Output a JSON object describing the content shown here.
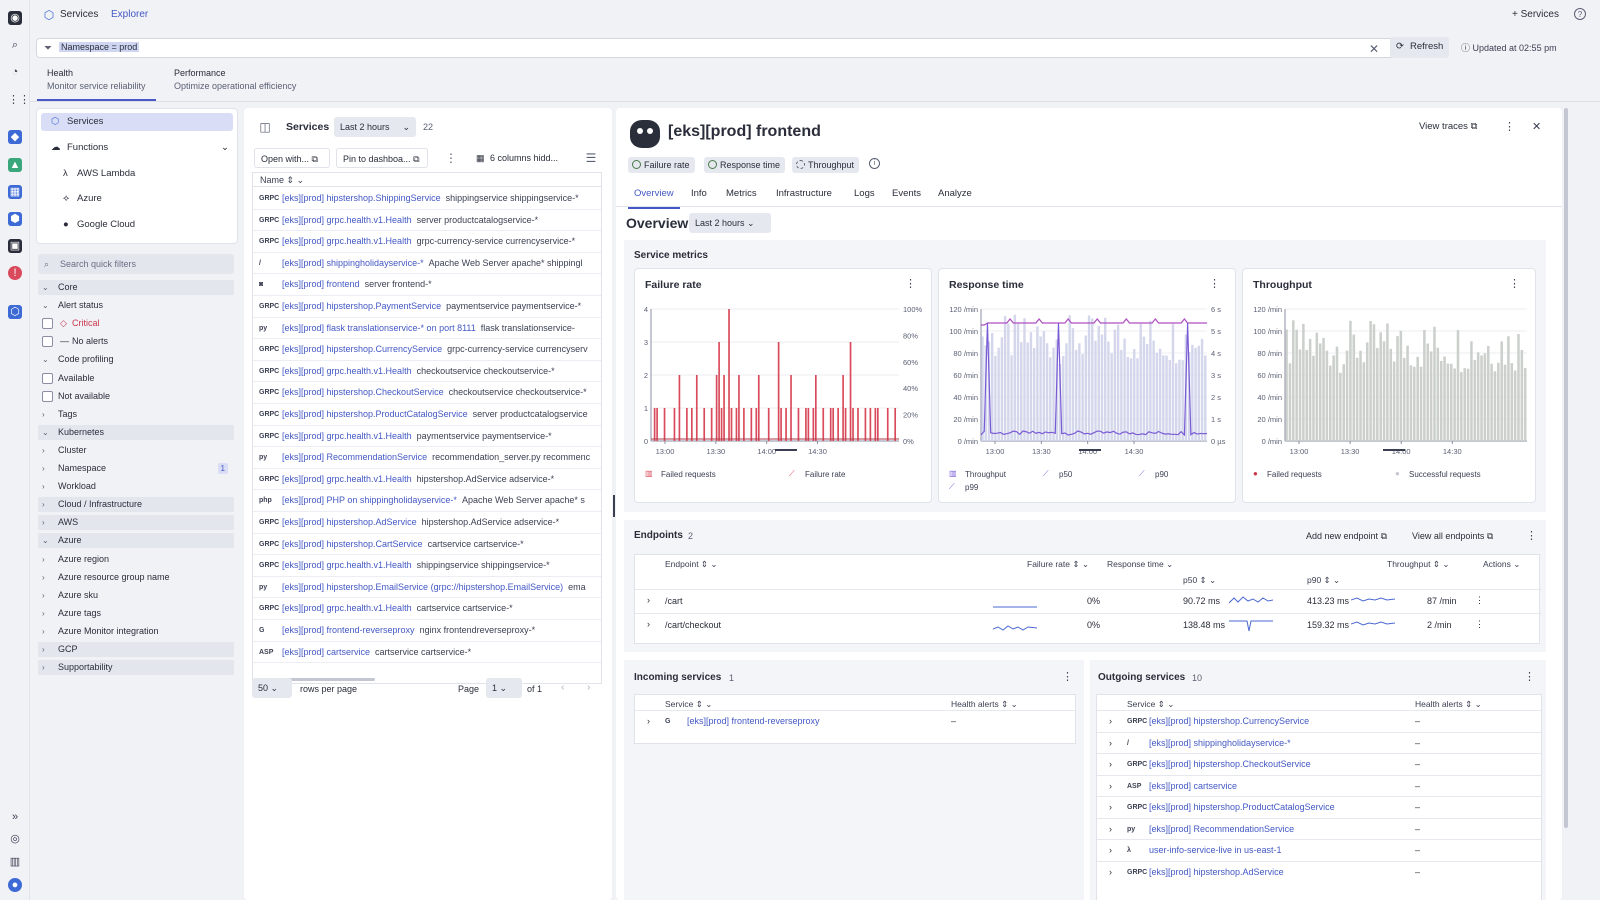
{
  "app": {
    "tab_services": "Services",
    "tab_explorer": "Explorer",
    "add_services": "Services"
  },
  "filter": {
    "query": "Namespace = prod",
    "refresh": "Refresh",
    "updated": "Updated at 02:55 pm"
  },
  "perspectives": [
    {
      "title": "Health",
      "sub": "Monitor service reliability"
    },
    {
      "title": "Performance",
      "sub": "Optimize operational efficiency"
    }
  ],
  "nav": {
    "services": "Services",
    "functions": "Functions",
    "items": [
      "AWS Lambda",
      "Azure",
      "Google Cloud"
    ]
  },
  "filters": {
    "search_placeholder": "Search quick filters",
    "rows": [
      {
        "label": "Core",
        "type": "hdr",
        "open": true
      },
      {
        "label": "Alert status",
        "type": "sub",
        "open": true
      },
      {
        "label": "Critical",
        "type": "cb",
        "critical": true
      },
      {
        "label": "No alerts",
        "type": "cb"
      },
      {
        "label": "Code profiling",
        "type": "sub",
        "open": true
      },
      {
        "label": "Available",
        "type": "cb"
      },
      {
        "label": "Not available",
        "type": "cb"
      },
      {
        "label": "Tags",
        "type": "sub"
      },
      {
        "label": "Kubernetes",
        "type": "hdr",
        "open": true
      },
      {
        "label": "Cluster",
        "type": "sub"
      },
      {
        "label": "Namespace",
        "type": "sub",
        "badge": "1"
      },
      {
        "label": "Workload",
        "type": "sub"
      },
      {
        "label": "Cloud / Infrastructure",
        "type": "hdr"
      },
      {
        "label": "AWS",
        "type": "hdr"
      },
      {
        "label": "Azure",
        "type": "hdr",
        "open": true
      },
      {
        "label": "Azure region",
        "type": "sub"
      },
      {
        "label": "Azure resource group name",
        "type": "sub"
      },
      {
        "label": "Azure sku",
        "type": "sub"
      },
      {
        "label": "Azure tags",
        "type": "sub"
      },
      {
        "label": "Azure Monitor integration",
        "type": "sub"
      },
      {
        "label": "GCP",
        "type": "hdr"
      },
      {
        "label": "Supportability",
        "type": "hdr"
      }
    ]
  },
  "services": {
    "title": "Services",
    "timeframe": "Last 2 hours",
    "count": "22",
    "open_with": "Open with...",
    "pin": "Pin to dashboa...",
    "columns": "6 columns hidd...",
    "col_name": "Name",
    "rows": [
      {
        "icon": "GRPC",
        "name": "[eks][prod] hipstershop.ShippingService",
        "desc": "shippingservice shippingservice-*"
      },
      {
        "icon": "GRPC",
        "name": "[eks][prod] grpc.health.v1.Health",
        "desc": "server productcatalogservice-*"
      },
      {
        "icon": "GRPC",
        "name": "[eks][prod] grpc.health.v1.Health",
        "desc": "grpc-currency-service currencyservice-*"
      },
      {
        "icon": "/",
        "name": "[eks][prod] shippingholidayservice-*",
        "desc": "Apache Web Server apache* shippingl"
      },
      {
        "icon": "◙",
        "name": "[eks][prod] frontend",
        "desc": "server frontend-*"
      },
      {
        "icon": "GRPC",
        "name": "[eks][prod] hipstershop.PaymentService",
        "desc": "paymentservice paymentservice-*"
      },
      {
        "icon": "py",
        "name": "[eks][prod] flask translationservice-* on port 8111",
        "desc": "flask translationservice-"
      },
      {
        "icon": "GRPC",
        "name": "[eks][prod] hipstershop.CurrencyService",
        "desc": "grpc-currency-service currencyserv"
      },
      {
        "icon": "GRPC",
        "name": "[eks][prod] grpc.health.v1.Health",
        "desc": "checkoutservice checkoutservice-*"
      },
      {
        "icon": "GRPC",
        "name": "[eks][prod] hipstershop.CheckoutService",
        "desc": "checkoutservice checkoutservice-*"
      },
      {
        "icon": "GRPC",
        "name": "[eks][prod] hipstershop.ProductCatalogService",
        "desc": "server productcatalogservice"
      },
      {
        "icon": "GRPC",
        "name": "[eks][prod] grpc.health.v1.Health",
        "desc": "paymentservice paymentservice-*"
      },
      {
        "icon": "py",
        "name": "[eks][prod] RecommendationService",
        "desc": "recommendation_server.py recommenc"
      },
      {
        "icon": "GRPC",
        "name": "[eks][prod] grpc.health.v1.Health",
        "desc": "hipstershop.AdService adservice-*"
      },
      {
        "icon": "php",
        "name": "[eks][prod] PHP on shippingholidayservice-*",
        "desc": "Apache Web Server apache* s"
      },
      {
        "icon": "GRPC",
        "name": "[eks][prod] hipstershop.AdService",
        "desc": "hipstershop.AdService adservice-*"
      },
      {
        "icon": "GRPC",
        "name": "[eks][prod] hipstershop.CartService",
        "desc": "cartservice cartservice-*"
      },
      {
        "icon": "GRPC",
        "name": "[eks][prod] grpc.health.v1.Health",
        "desc": "shippingservice shippingservice-*"
      },
      {
        "icon": "py",
        "name": "[eks][prod] hipstershop.EmailService (grpc://hipstershop.EmailService)",
        "desc": "ema"
      },
      {
        "icon": "GRPC",
        "name": "[eks][prod] grpc.health.v1.Health",
        "desc": "cartservice cartservice-*"
      },
      {
        "icon": "G",
        "name": "[eks][prod] frontend-reverseproxy",
        "desc": "nginx frontendreverseproxy-*"
      },
      {
        "icon": "ASP",
        "name": "[eks][prod] cartservice",
        "desc": "cartservice cartservice-*"
      }
    ],
    "rows_per_page": "50",
    "rows_per_page_label": "rows per page",
    "page_label": "Page",
    "page": "1",
    "of": "of 1"
  },
  "detail": {
    "title": "[eks][prod] frontend",
    "view_traces": "View traces",
    "pills": [
      "Failure rate",
      "Response time",
      "Throughput"
    ],
    "tabs": [
      "Overview",
      "Info",
      "Metrics",
      "Infrastructure",
      "Logs",
      "Events",
      "Analyze"
    ],
    "overview": "Overview",
    "timeframe": "Last 2 hours",
    "service_metrics": "Service metrics",
    "endpoints_title": "Endpoints",
    "endpoints_count": "2",
    "add_endpoint": "Add new endpoint",
    "view_all": "View all endpoints",
    "ep_cols": {
      "endpoint": "Endpoint",
      "failure": "Failure rate",
      "response": "Response time",
      "p50": "p50",
      "p90": "p90",
      "throughput": "Throughput",
      "actions": "Actions"
    },
    "endpoints": [
      {
        "name": "/cart",
        "failure": "0%",
        "p50": "90.72 ms",
        "p90": "413.23 ms",
        "tp": "87 /min"
      },
      {
        "name": "/cart/checkout",
        "failure": "0%",
        "p50": "138.48 ms",
        "p90": "159.32 ms",
        "tp": "2 /min"
      }
    ],
    "incoming_title": "Incoming services",
    "incoming_count": "1",
    "outgoing_title": "Outgoing services",
    "outgoing_count": "10",
    "col_service": "Service",
    "col_health": "Health alerts",
    "incoming": [
      {
        "icon": "G",
        "name": "[eks][prod] frontend-reverseproxy",
        "health": "–"
      }
    ],
    "outgoing": [
      {
        "icon": "GRPC",
        "name": "[eks][prod] hipstershop.CurrencyService",
        "health": "–"
      },
      {
        "icon": "/",
        "name": "[eks][prod] shippingholidayservice-*",
        "health": "–"
      },
      {
        "icon": "GRPC",
        "name": "[eks][prod] hipstershop.CheckoutService",
        "health": "–"
      },
      {
        "icon": "ASP",
        "name": "[eks][prod] cartservice",
        "health": "–"
      },
      {
        "icon": "GRPC",
        "name": "[eks][prod] hipstershop.ProductCatalogService",
        "health": "–"
      },
      {
        "icon": "py",
        "name": "[eks][prod] RecommendationService",
        "health": "–"
      },
      {
        "icon": "λ",
        "name": "user-info-service-live in us-east-1",
        "health": "–"
      },
      {
        "icon": "GRPC",
        "name": "[eks][prod] hipstershop.AdService",
        "health": "–"
      }
    ]
  },
  "chart_data": [
    {
      "type": "bar",
      "title": "Failure rate",
      "y_left_ticks": [
        "0",
        "1",
        "2",
        "3",
        "4"
      ],
      "y_right_ticks": [
        "0%",
        "20%",
        "40%",
        "60%",
        "80%",
        "100%"
      ],
      "x_ticks": [
        "13:00",
        "13:30",
        "14:00",
        "14:30"
      ],
      "legend": [
        "Failed requests",
        "Failure rate"
      ],
      "ylim": [
        0,
        4
      ],
      "values": [
        0,
        1,
        1,
        0,
        0,
        1,
        0,
        0,
        0,
        1,
        0,
        2,
        0,
        0,
        1,
        0,
        1,
        0,
        2,
        0,
        0,
        1,
        0,
        0,
        1,
        0,
        2,
        3,
        1,
        2,
        0,
        4,
        1,
        0,
        1,
        2,
        0,
        1,
        0,
        0,
        1,
        0,
        1,
        2,
        0,
        0,
        0,
        1,
        0,
        0,
        0,
        3,
        1,
        0,
        1,
        0,
        2,
        0,
        0,
        1,
        0,
        0,
        1,
        1,
        0,
        1,
        2,
        0,
        0,
        1,
        0,
        0,
        1,
        1,
        0,
        1,
        0,
        2,
        1,
        0,
        3,
        1,
        0,
        1,
        0,
        0,
        1,
        0,
        1,
        0,
        1,
        1,
        0,
        0,
        0,
        1,
        0,
        0,
        1,
        0
      ]
    },
    {
      "type": "line",
      "title": "Response time",
      "y_left_ticks": [
        "0 /min",
        "20 /min",
        "40 /min",
        "60 /min",
        "80 /min",
        "100 /min",
        "120 /min"
      ],
      "y_right_ticks": [
        "0 µs",
        "1 s",
        "2 s",
        "3 s",
        "4 s",
        "5 s",
        "6 s"
      ],
      "x_ticks": [
        "13:00",
        "13:30",
        "14:00",
        "14:30"
      ],
      "legend": [
        "Throughput",
        "p50",
        "p90",
        "p99"
      ],
      "ylim": [
        0,
        120
      ]
    },
    {
      "type": "bar",
      "title": "Throughput",
      "y_left_ticks": [
        "0 /min",
        "20 /min",
        "40 /min",
        "60 /min",
        "80 /min",
        "100 /min",
        "120 /min"
      ],
      "x_ticks": [
        "13:00",
        "13:30",
        "14:00",
        "14:30"
      ],
      "legend": [
        "Failed requests",
        "Successful requests"
      ],
      "ylim": [
        0,
        120
      ]
    }
  ],
  "colors": {
    "accent": "#4358c4",
    "failure": "#d94b5c",
    "throughput": "#c9ccd9",
    "line": "#8a5bd0"
  }
}
